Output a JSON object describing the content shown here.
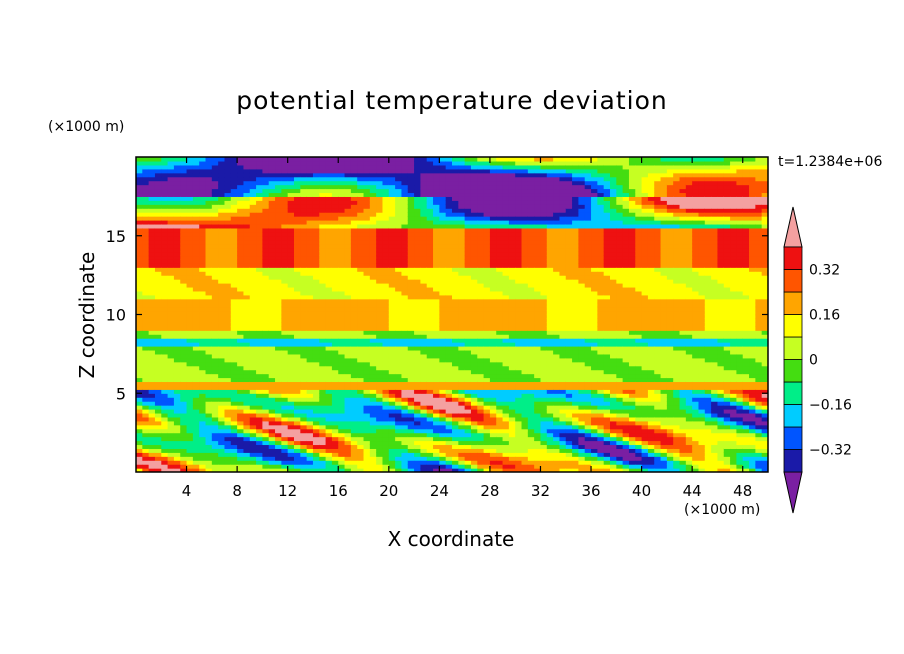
{
  "chart_data": {
    "type": "heatmap",
    "title": "potential temperature deviation",
    "xlabel": "X coordinate",
    "ylabel": "Z coordinate",
    "x_unit": "(×1000 m)",
    "y_unit": "(×1000 m)",
    "time_label": "t=1.2384e+06",
    "xlim": [
      0,
      50
    ],
    "ylim": [
      0,
      20
    ],
    "x_ticks": [
      4,
      8,
      12,
      16,
      20,
      24,
      28,
      32,
      36,
      40,
      44,
      48
    ],
    "y_ticks": [
      5,
      10,
      15
    ],
    "colorbar": {
      "levels": [
        -0.4,
        -0.32,
        -0.24,
        -0.16,
        -0.08,
        0,
        0.08,
        0.16,
        0.24,
        0.32,
        0.4
      ],
      "tick_labels": [
        "0.32",
        "0.16",
        "0",
        "−0.16",
        "−0.32"
      ],
      "tick_values": [
        0.32,
        0.16,
        0,
        -0.16,
        -0.32
      ],
      "colors": [
        "#7a1fa2",
        "#1a1aa8",
        "#0055ff",
        "#00ccff",
        "#00ee88",
        "#44dd11",
        "#c6ff22",
        "#ffff00",
        "#ffa500",
        "#ff5500",
        "#ee1111",
        "#f4a0a0"
      ],
      "extend": "both"
    },
    "grid": false
  }
}
